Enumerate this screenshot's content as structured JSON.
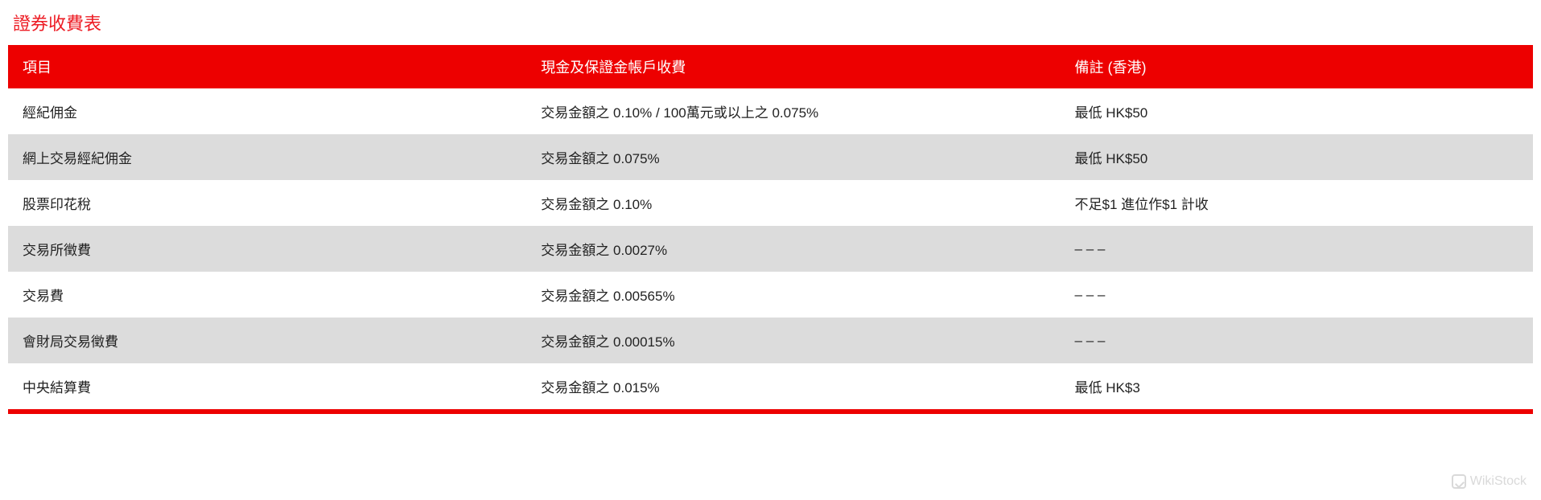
{
  "title": "證券收費表",
  "title_color": "#ed1c24",
  "header_bg": "#ed0000",
  "header_text_color": "#ffffff",
  "row_odd_bg": "#ffffff",
  "row_even_bg": "#dcdcdc",
  "cell_text_color": "#222222",
  "footer_border_color": "#ed0000",
  "columns": [
    {
      "label": "項目",
      "width_pct": 34
    },
    {
      "label": "現金及保證金帳戶收費",
      "width_pct": 35
    },
    {
      "label": "備註 (香港)",
      "width_pct": 31
    }
  ],
  "rows": [
    {
      "item": "經紀佣金",
      "fee": "交易金額之 0.10% / 100萬元或以上之 0.075%",
      "remark": "最低 HK$50"
    },
    {
      "item": "網上交易經紀佣金",
      "fee": "交易金額之 0.075%",
      "remark": "最低 HK$50"
    },
    {
      "item": "股票印花稅",
      "fee": "交易金額之 0.10%",
      "remark": "不足$1 進位作$1 計收"
    },
    {
      "item": "交易所徵費",
      "fee": "交易金額之 0.0027%",
      "remark": "– – –"
    },
    {
      "item": "交易費",
      "fee": "交易金額之 0.00565%",
      "remark": "– – –"
    },
    {
      "item": "會財局交易徵費",
      "fee": "交易金額之 0.00015%",
      "remark": "– – –"
    },
    {
      "item": "中央結算費",
      "fee": "交易金額之 0.015%",
      "remark": "最低 HK$3"
    }
  ],
  "watermark": "WikiStock"
}
